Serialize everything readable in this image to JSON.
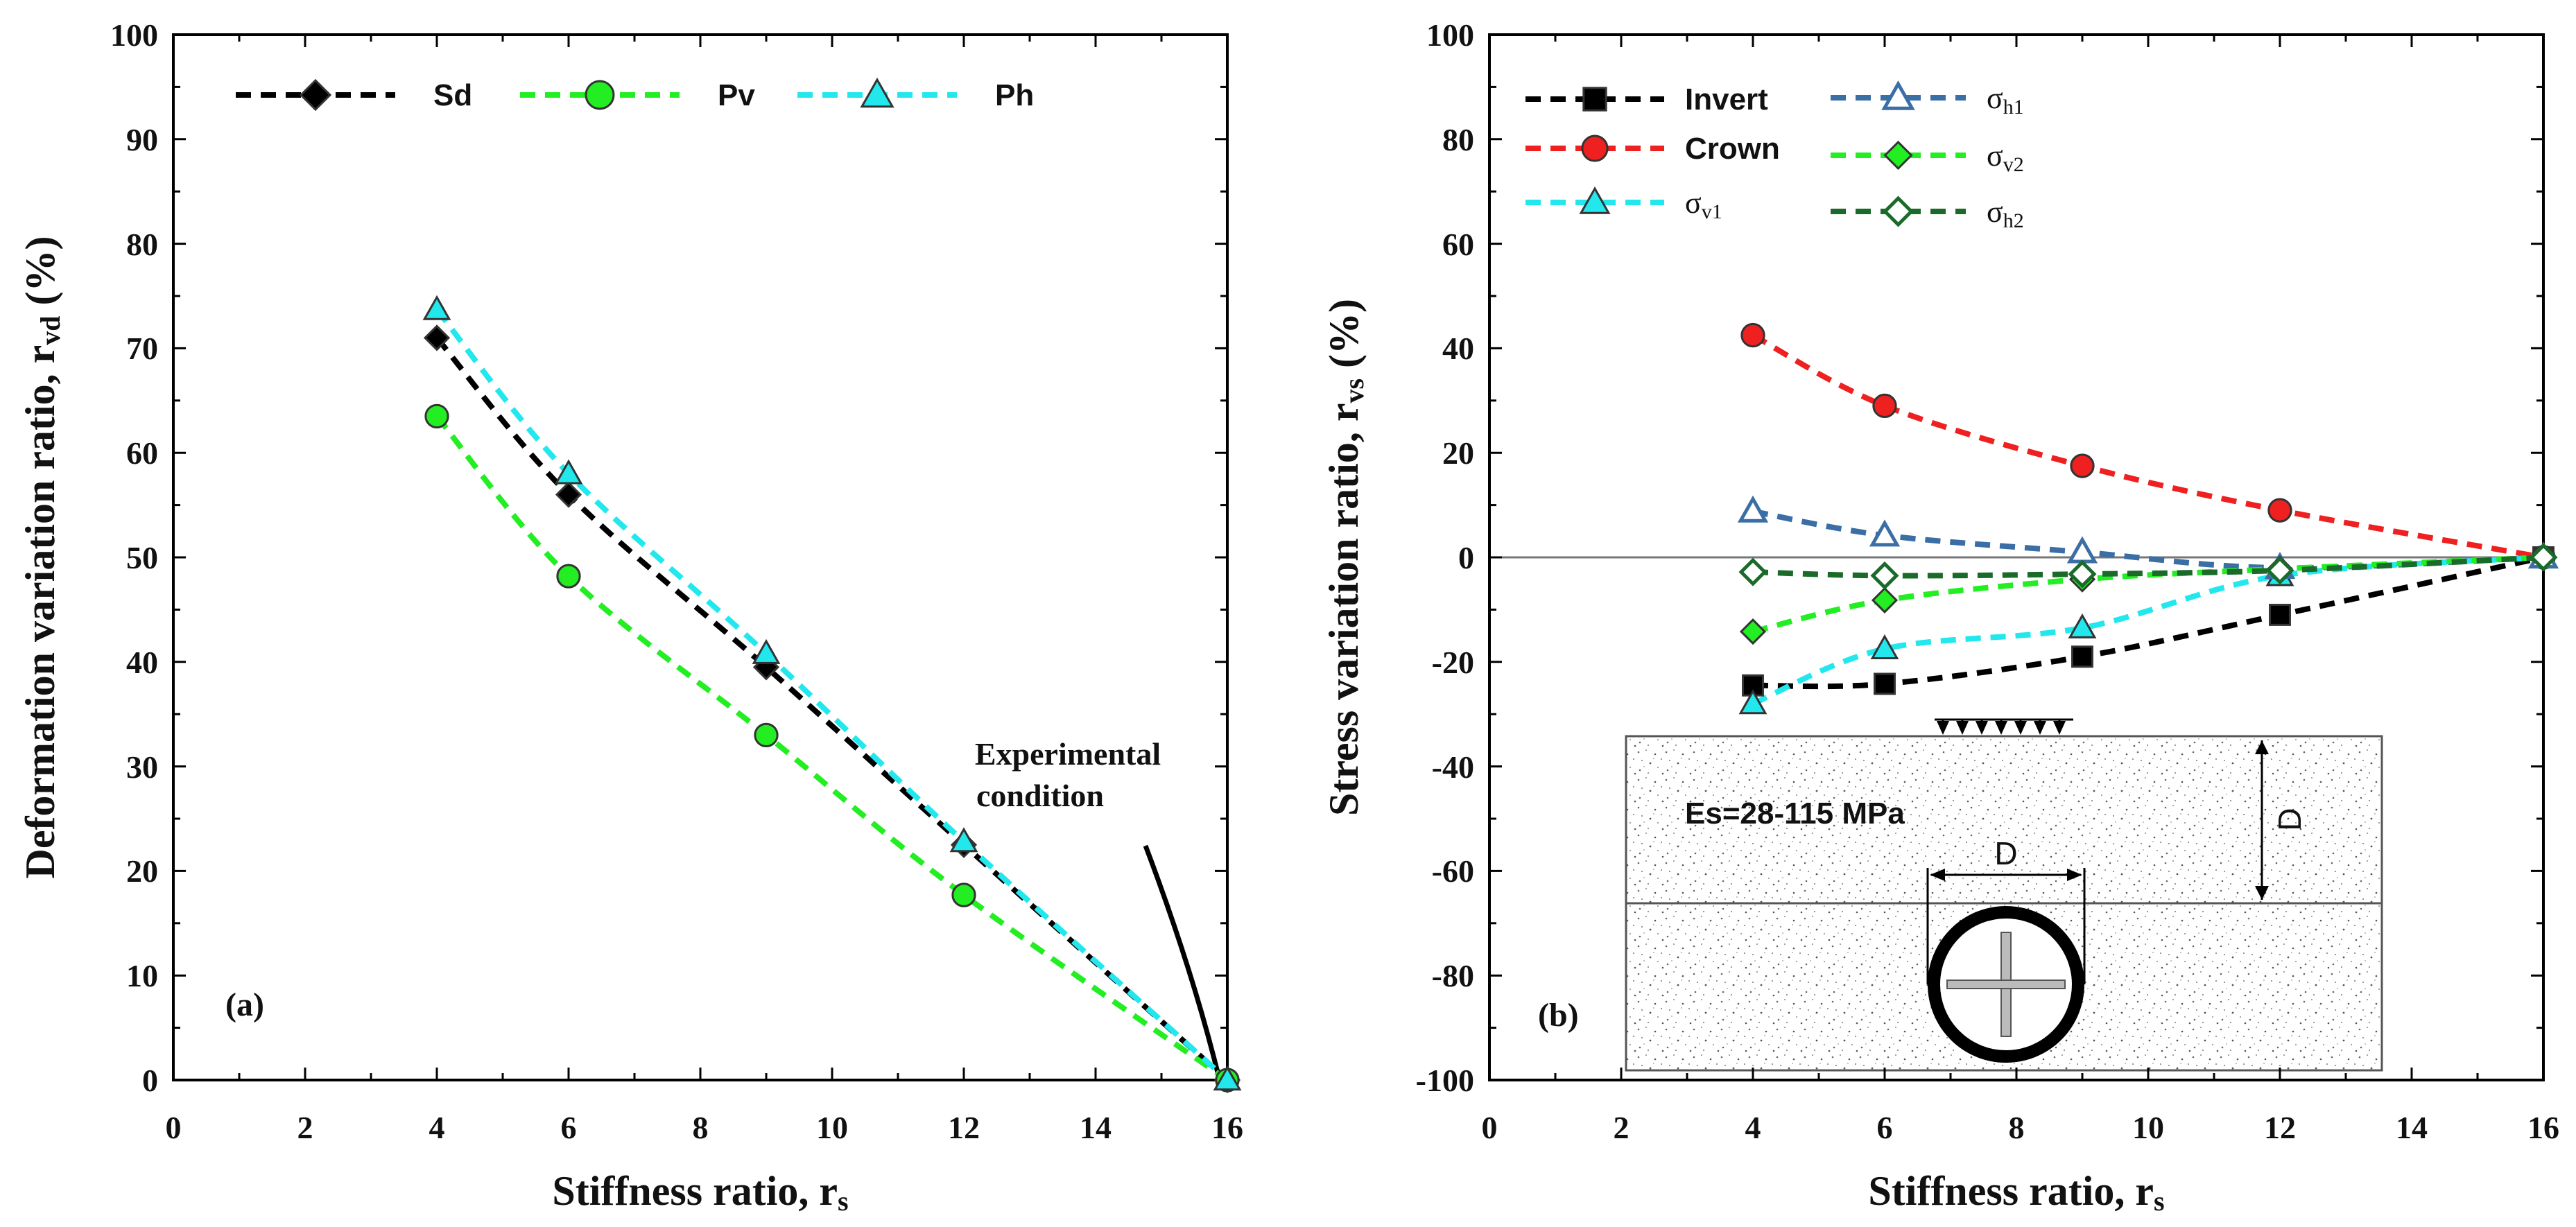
{
  "chart_data": [
    {
      "type": "line",
      "panel_label": "(a)",
      "xlabel": "Stiffness ratio, r",
      "xlabel_sub": "s",
      "ylabel": "Deformation variation ratio, r",
      "ylabel_sub": "vd",
      "ylabel_suffix": " (%)",
      "xlim": [
        0,
        16
      ],
      "ylim": [
        0,
        100
      ],
      "x_ticks": [
        "0",
        "2",
        "4",
        "6",
        "8",
        "10",
        "12",
        "14",
        "16"
      ],
      "y_ticks": [
        "0",
        "10",
        "20",
        "30",
        "40",
        "50",
        "60",
        "70",
        "80",
        "90",
        "100"
      ],
      "x": [
        4,
        6,
        9,
        12,
        16
      ],
      "series": [
        {
          "name": "Sd",
          "color": "#000000",
          "marker": "diamond",
          "values": [
            71,
            56,
            39.5,
            22.5,
            0
          ]
        },
        {
          "name": "Pv",
          "color": "#22ee22",
          "marker": "circle",
          "values": [
            63.5,
            48.2,
            33,
            17.7,
            0
          ]
        },
        {
          "name": "Ph",
          "color": "#22e8ee",
          "marker": "triangle",
          "values": [
            73.7,
            58,
            40.8,
            22.8,
            0
          ]
        }
      ],
      "annotation": {
        "line1": "Experimental",
        "line2": "condition",
        "x": 16,
        "y": 0
      }
    },
    {
      "type": "line",
      "panel_label": "(b)",
      "xlabel": "Stiffness ratio, r",
      "xlabel_sub": "s",
      "ylabel": "Stress variation ratio, r",
      "ylabel_sub": "vs",
      "ylabel_suffix": " (%)",
      "xlim": [
        0,
        16
      ],
      "ylim": [
        -100,
        100
      ],
      "x_ticks": [
        "0",
        "2",
        "4",
        "6",
        "8",
        "10",
        "12",
        "14",
        "16"
      ],
      "y_ticks": [
        "-100",
        "-80",
        "-60",
        "-40",
        "-20",
        "0",
        "20",
        "40",
        "60",
        "80",
        "100"
      ],
      "x": [
        4,
        6,
        9,
        12,
        16
      ],
      "series": [
        {
          "name": "Invert",
          "sigma": false,
          "sub": "",
          "color": "#000000",
          "marker": "square",
          "values": [
            -24.5,
            -24.2,
            -19,
            -11,
            0
          ]
        },
        {
          "name": "Crown",
          "sigma": false,
          "sub": "",
          "color": "#ee2020",
          "marker": "circle",
          "values": [
            42.5,
            29,
            17.5,
            9,
            0
          ]
        },
        {
          "name": "σ",
          "sigma": true,
          "sub": "v1",
          "color": "#22e8ee",
          "marker": "triangle",
          "values": [
            -28,
            -17.5,
            -13.5,
            -3.5,
            0
          ]
        },
        {
          "name": "σ",
          "sigma": true,
          "sub": "h1",
          "color": "#3a6ea5",
          "marker": "triangle-open",
          "values": [
            8.8,
            4.2,
            1,
            -2,
            0
          ]
        },
        {
          "name": "σ",
          "sigma": true,
          "sub": "v2",
          "color": "#22ee22",
          "marker": "diamond",
          "values": [
            -14.2,
            -8.2,
            -4.2,
            -2.2,
            0
          ]
        },
        {
          "name": "σ",
          "sigma": true,
          "sub": "h2",
          "color": "#1a6a2a",
          "marker": "diamond-open",
          "values": [
            -2.8,
            -3.5,
            -3.2,
            -2.5,
            0
          ]
        }
      ],
      "inset": {
        "modulus": "Es=28-115 MPa",
        "cover_label": "D",
        "diameter_label": "D"
      }
    }
  ]
}
